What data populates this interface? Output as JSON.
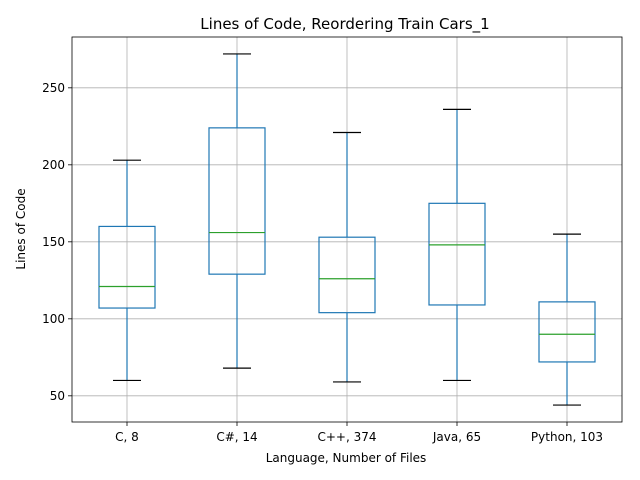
{
  "chart_data": {
    "type": "box",
    "title": "Lines of Code, Reordering Train Cars_1",
    "xlabel": "Language, Number of Files",
    "ylabel": "Lines of Code",
    "ylim": [
      33,
      283
    ],
    "yticks": [
      50,
      100,
      150,
      200,
      250
    ],
    "grid": true,
    "categories": [
      "C, 8",
      "C#, 14",
      "C++, 374",
      "Java, 65",
      "Python, 103"
    ],
    "boxes": [
      {
        "category": "C, 8",
        "whisker_low": 60,
        "q1": 107,
        "median": 121,
        "q3": 160,
        "whisker_high": 203
      },
      {
        "category": "C#, 14",
        "whisker_low": 68,
        "q1": 129,
        "median": 156,
        "q3": 224,
        "whisker_high": 272
      },
      {
        "category": "C++, 374",
        "whisker_low": 59,
        "q1": 104,
        "median": 126,
        "q3": 153,
        "whisker_high": 221
      },
      {
        "category": "Java, 65",
        "whisker_low": 60,
        "q1": 109,
        "median": 148,
        "q3": 175,
        "whisker_high": 236
      },
      {
        "category": "Python, 103",
        "whisker_low": 44,
        "q1": 72,
        "median": 90,
        "q3": 111,
        "whisker_high": 155
      }
    ],
    "colors": {
      "box": "#1f77b4",
      "median": "#2ca02c",
      "cap": "#000000",
      "grid": "#b0b0b0"
    }
  }
}
